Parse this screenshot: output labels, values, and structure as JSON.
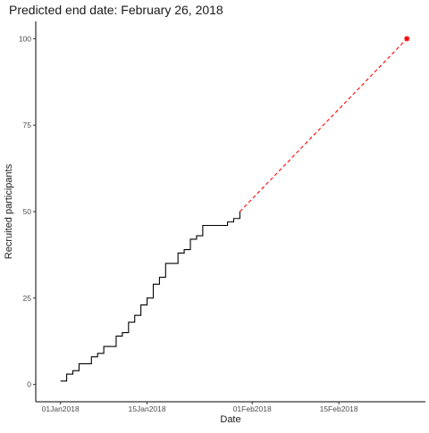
{
  "chart_data": {
    "type": "line",
    "title": "Predicted end date: February 26, 2018",
    "xlabel": "Date",
    "ylabel": "Recruited participants",
    "x_ticks": [
      {
        "label": "01Jan2018",
        "date": "2018-01-01"
      },
      {
        "label": "15Jan2018",
        "date": "2018-01-15"
      },
      {
        "label": "01Feb2018",
        "date": "2018-02-01"
      },
      {
        "label": "15Feb2018",
        "date": "2018-02-15"
      }
    ],
    "y_ticks": [
      0,
      25,
      50,
      75,
      100
    ],
    "xlim": [
      "2017-12-28",
      "2018-03-01"
    ],
    "ylim": [
      -5,
      105
    ],
    "grid": false,
    "series": [
      {
        "style": "step",
        "color": "#000000",
        "points": [
          {
            "date": "2018-01-01",
            "y": 1
          },
          {
            "date": "2018-01-02",
            "y": 3
          },
          {
            "date": "2018-01-03",
            "y": 4
          },
          {
            "date": "2018-01-04",
            "y": 6
          },
          {
            "date": "2018-01-06",
            "y": 8
          },
          {
            "date": "2018-01-07",
            "y": 9
          },
          {
            "date": "2018-01-08",
            "y": 11
          },
          {
            "date": "2018-01-10",
            "y": 14
          },
          {
            "date": "2018-01-11",
            "y": 15
          },
          {
            "date": "2018-01-12",
            "y": 18
          },
          {
            "date": "2018-01-13",
            "y": 20
          },
          {
            "date": "2018-01-14",
            "y": 23
          },
          {
            "date": "2018-01-15",
            "y": 25
          },
          {
            "date": "2018-01-16",
            "y": 29
          },
          {
            "date": "2018-01-17",
            "y": 31
          },
          {
            "date": "2018-01-18",
            "y": 35
          },
          {
            "date": "2018-01-20",
            "y": 38
          },
          {
            "date": "2018-01-21",
            "y": 39
          },
          {
            "date": "2018-01-22",
            "y": 42
          },
          {
            "date": "2018-01-23",
            "y": 43
          },
          {
            "date": "2018-01-24",
            "y": 46
          },
          {
            "date": "2018-01-28",
            "y": 47
          },
          {
            "date": "2018-01-29",
            "y": 48
          },
          {
            "date": "2018-01-30",
            "y": 50
          }
        ]
      },
      {
        "style": "dashed",
        "color": "#ff0000",
        "points": [
          {
            "date": "2018-01-30",
            "y": 50
          },
          {
            "date": "2018-02-26",
            "y": 100
          }
        ],
        "end_marker": {
          "date": "2018-02-26",
          "y": 100,
          "shape": "asterisk"
        }
      }
    ]
  }
}
